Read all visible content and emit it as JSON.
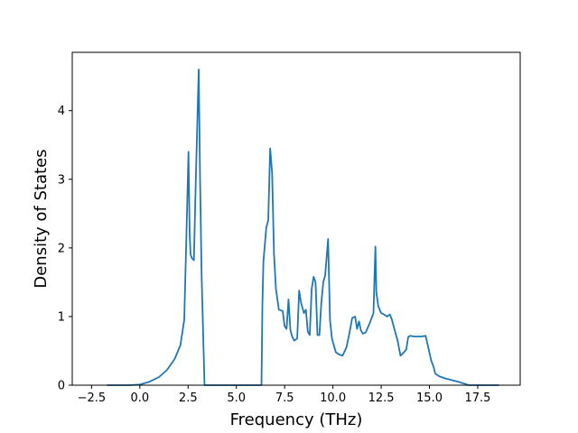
{
  "chart_data": {
    "type": "line",
    "title": "",
    "xlabel": "Frequency (THz)",
    "ylabel": "Density of States",
    "xlim": [
      -3.5,
      19.7
    ],
    "ylim": [
      0,
      4.85
    ],
    "xticks": [
      -2.5,
      0.0,
      2.5,
      5.0,
      7.5,
      10.0,
      12.5,
      15.0,
      17.5
    ],
    "xtick_labels": [
      "−2.5",
      "0.0",
      "2.5",
      "5.0",
      "7.5",
      "10.0",
      "12.5",
      "15.0",
      "17.5"
    ],
    "yticks": [
      0,
      1,
      2,
      3,
      4
    ],
    "ytick_labels": [
      "0",
      "1",
      "2",
      "3",
      "4"
    ],
    "grid": false,
    "series": [
      {
        "color": "#1f77b4",
        "x": [
          -1.7,
          -1.0,
          -0.5,
          0.0,
          0.5,
          1.0,
          1.4,
          1.8,
          2.1,
          2.3,
          2.45,
          2.52,
          2.58,
          2.63,
          2.7,
          2.8,
          2.9,
          3.05,
          3.12,
          3.2,
          3.35,
          3.5,
          4.5,
          5.5,
          6.3,
          6.35,
          6.4,
          6.55,
          6.65,
          6.75,
          6.85,
          6.95,
          7.05,
          7.2,
          7.4,
          7.5,
          7.6,
          7.7,
          7.8,
          7.9,
          8.0,
          8.15,
          8.25,
          8.35,
          8.5,
          8.6,
          8.7,
          8.8,
          8.9,
          9.0,
          9.1,
          9.2,
          9.3,
          9.4,
          9.5,
          9.6,
          9.75,
          9.85,
          9.95,
          10.05,
          10.15,
          10.3,
          10.5,
          10.7,
          10.85,
          11.0,
          11.15,
          11.25,
          11.35,
          11.45,
          11.55,
          11.7,
          11.9,
          12.1,
          12.2,
          12.25,
          12.35,
          12.5,
          12.65,
          12.8,
          12.95,
          13.05,
          13.2,
          13.35,
          13.5,
          13.65,
          13.8,
          13.9,
          14.0,
          14.2,
          14.4,
          14.6,
          14.8,
          14.9,
          15.0,
          15.1,
          15.2,
          15.3,
          15.5,
          15.8,
          16.2,
          16.5,
          16.7,
          16.85,
          17.0,
          17.5,
          18.0,
          18.6
        ],
        "y": [
          0,
          0,
          0,
          0.01,
          0.05,
          0.12,
          0.22,
          0.38,
          0.58,
          0.95,
          2.6,
          3.4,
          2.2,
          1.9,
          1.85,
          1.82,
          3.0,
          4.6,
          3.0,
          1.6,
          0,
          0,
          0,
          0,
          0,
          1.2,
          1.8,
          2.3,
          2.4,
          3.45,
          3.1,
          1.9,
          1.4,
          1.1,
          1.08,
          0.86,
          0.82,
          1.25,
          0.8,
          0.7,
          0.65,
          0.68,
          1.38,
          1.2,
          1.05,
          1.1,
          0.78,
          0.73,
          1.4,
          1.58,
          1.5,
          0.73,
          0.73,
          1.2,
          1.5,
          1.6,
          2.13,
          0.95,
          0.68,
          0.58,
          0.48,
          0.45,
          0.43,
          0.55,
          0.75,
          0.98,
          1.0,
          0.82,
          0.93,
          0.8,
          0.75,
          0.77,
          0.9,
          1.05,
          2.02,
          1.35,
          1.15,
          1.05,
          1.03,
          1.0,
          1.03,
          0.96,
          0.8,
          0.65,
          0.43,
          0.47,
          0.52,
          0.7,
          0.72,
          0.71,
          0.71,
          0.71,
          0.72,
          0.6,
          0.47,
          0.35,
          0.28,
          0.17,
          0.13,
          0.1,
          0.07,
          0.05,
          0.03,
          0.02,
          0.0,
          0.0,
          0.0,
          0.0
        ]
      }
    ]
  }
}
